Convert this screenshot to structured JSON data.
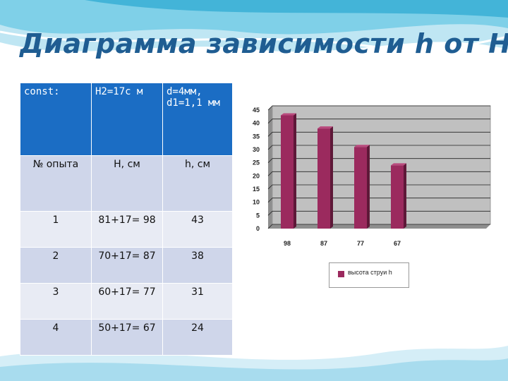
{
  "slide": {
    "title": "Диаграмма  зависимости  h от H",
    "accent_color": "#1b6dc4",
    "bar_color": "#9b2a5e"
  },
  "table": {
    "header": [
      "const:",
      "H2=17с м",
      "d=4мм, d1=1,1 мм"
    ],
    "subheader": [
      "№ опыта",
      "H, см",
      "h, см"
    ],
    "rows": [
      [
        "1",
        "81+17= 98",
        "43"
      ],
      [
        "2",
        "70+17= 87",
        "38"
      ],
      [
        "3",
        "60+17= 77",
        "31"
      ],
      [
        "4",
        "50+17= 67",
        "24"
      ]
    ]
  },
  "chart_data": {
    "type": "bar",
    "categories": [
      "98",
      "87",
      "77",
      "67"
    ],
    "series": [
      {
        "name": "высота струи h",
        "values": [
          43,
          38,
          31,
          24
        ]
      }
    ],
    "ylim": [
      0,
      45
    ],
    "yticks": [
      0,
      5,
      10,
      15,
      20,
      25,
      30,
      35,
      40,
      45
    ],
    "grid": true,
    "legend": "bottom"
  }
}
